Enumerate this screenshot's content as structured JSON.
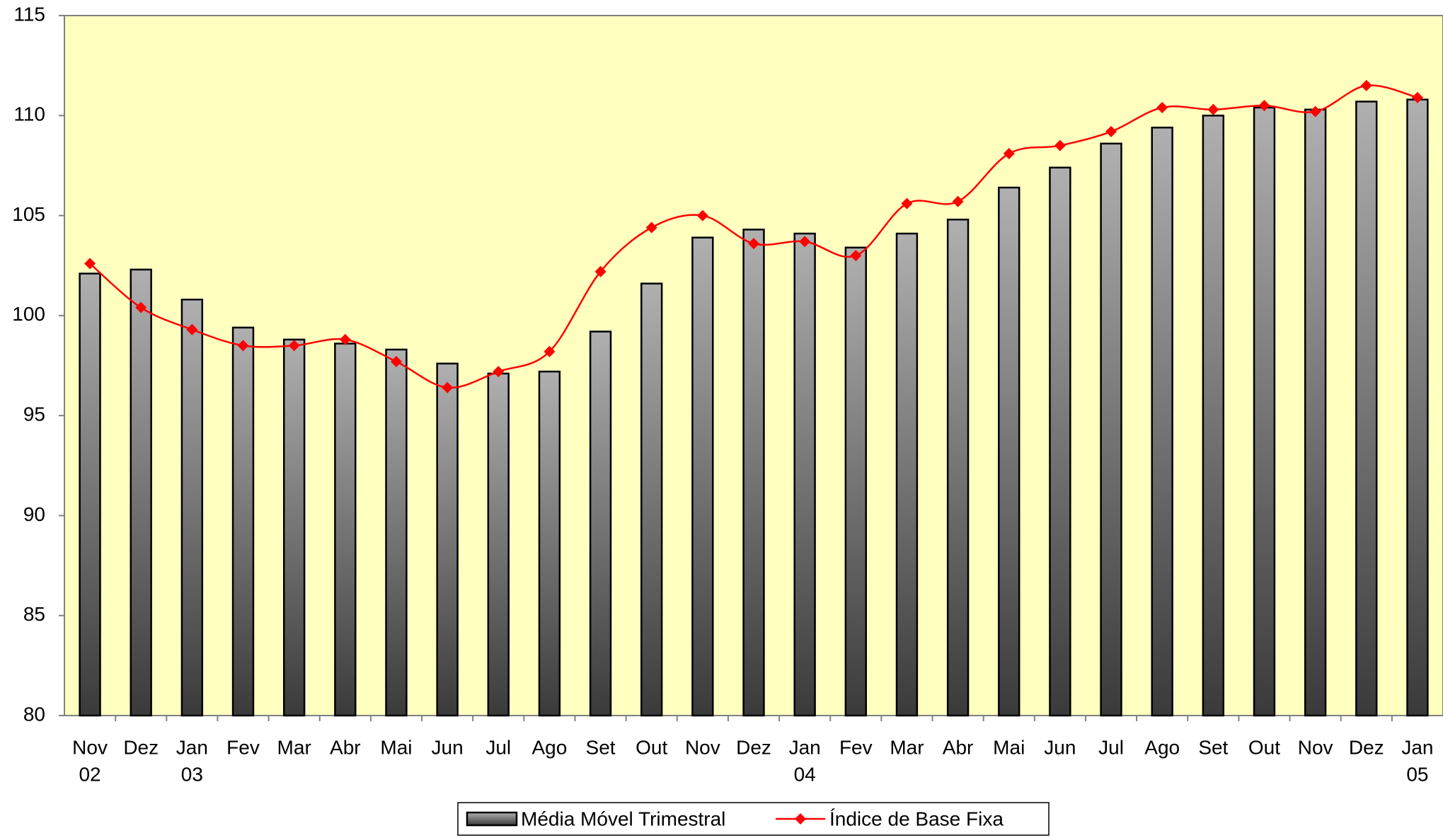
{
  "chart_data": {
    "type": "bar_line",
    "categories": [
      "Nov",
      "Dez",
      "Jan",
      "Fev",
      "Mar",
      "Abr",
      "Mai",
      "Jun",
      "Jul",
      "Ago",
      "Set",
      "Out",
      "Nov",
      "Dez",
      "Jan",
      "Fev",
      "Mar",
      "Abr",
      "Mai",
      "Jun",
      "Jul",
      "Ago",
      "Set",
      "Out",
      "Nov",
      "Dez",
      "Jan"
    ],
    "category_years": [
      "02",
      null,
      "03",
      null,
      null,
      null,
      null,
      null,
      null,
      null,
      null,
      null,
      null,
      null,
      "04",
      null,
      null,
      null,
      null,
      null,
      null,
      null,
      null,
      null,
      null,
      null,
      "05"
    ],
    "series": [
      {
        "name": "Média Móvel Trimestral",
        "type": "bar",
        "color": "#808080",
        "values": [
          102.1,
          102.3,
          100.8,
          99.4,
          98.8,
          98.6,
          98.3,
          97.6,
          97.1,
          97.2,
          99.2,
          101.6,
          103.9,
          104.3,
          104.1,
          103.4,
          104.1,
          104.8,
          106.4,
          107.4,
          108.6,
          109.4,
          110.0,
          110.4,
          110.3,
          110.7,
          110.8
        ]
      },
      {
        "name": "Índice de Base Fixa",
        "type": "line",
        "color": "#ff0000",
        "values": [
          102.6,
          100.4,
          99.3,
          98.5,
          98.5,
          98.8,
          97.7,
          96.4,
          97.2,
          98.2,
          102.2,
          104.4,
          105.0,
          103.6,
          103.7,
          103.0,
          105.6,
          105.7,
          108.1,
          108.5,
          109.2,
          110.4,
          110.3,
          110.5,
          110.2,
          111.5,
          110.9
        ]
      }
    ],
    "ylim": [
      80,
      115
    ],
    "yticks": [
      80,
      85,
      90,
      95,
      100,
      105,
      110,
      115
    ],
    "grid": false,
    "legend": "bottom",
    "background": "#ffffc0"
  }
}
